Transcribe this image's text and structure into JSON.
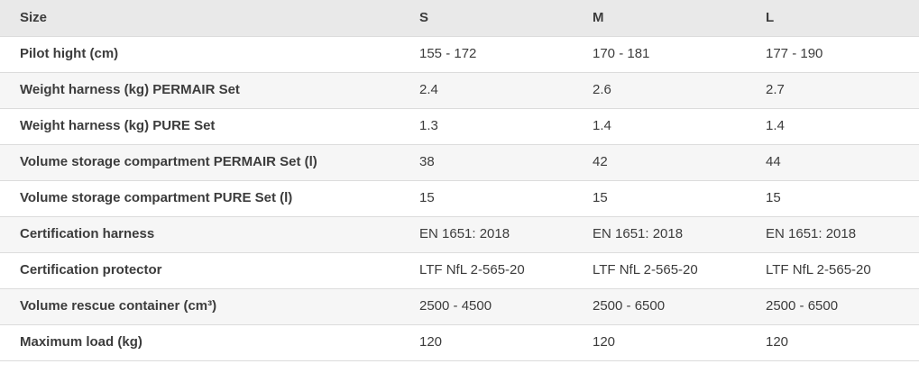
{
  "chart_data": {
    "type": "table",
    "columns": [
      "Size",
      "S",
      "M",
      "L"
    ],
    "rows": [
      {
        "label": "Pilot hight (cm)",
        "values": [
          "155 - 172",
          "170 - 181",
          "177 - 190"
        ]
      },
      {
        "label": "Weight harness (kg) PERMAIR Set",
        "values": [
          "2.4",
          "2.6",
          "2.7"
        ]
      },
      {
        "label": "Weight harness (kg) PURE Set",
        "values": [
          "1.3",
          "1.4",
          "1.4"
        ]
      },
      {
        "label": "Volume storage compartment PERMAIR Set (l)",
        "values": [
          "38",
          "42",
          "44"
        ]
      },
      {
        "label": "Volume storage compartment PURE Set (l)",
        "values": [
          "15",
          "15",
          "15"
        ]
      },
      {
        "label": "Certification harness",
        "values": [
          "EN 1651: 2018",
          "EN 1651: 2018",
          "EN 1651: 2018"
        ]
      },
      {
        "label": "Certification protector",
        "values": [
          "LTF NfL 2-565-20",
          "LTF NfL 2-565-20",
          "LTF NfL 2-565-20"
        ]
      },
      {
        "label": "Volume rescue container (cm³)",
        "values": [
          "2500 - 4500",
          "2500 - 6500",
          "2500 - 6500"
        ]
      },
      {
        "label": "Maximum load (kg)",
        "values": [
          "120",
          "120",
          "120"
        ]
      }
    ]
  },
  "colors": {
    "header-bg": "#e9e9e9",
    "stripe-bg": "#f6f6f6",
    "row-bg": "#ffffff",
    "border": "#dcdcdc",
    "text": "#3c3c3c"
  }
}
